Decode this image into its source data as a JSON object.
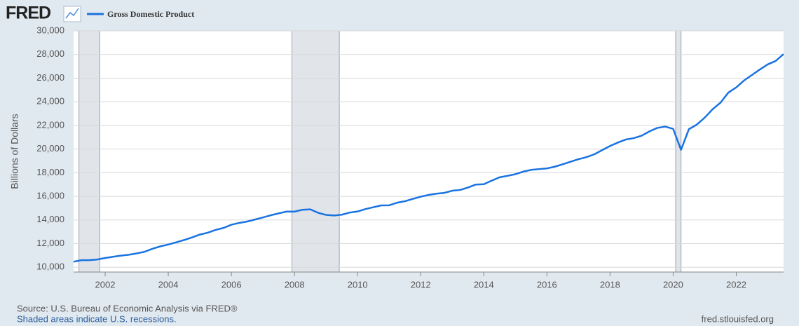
{
  "chart_data": {
    "type": "line",
    "logo": "FRED",
    "y_label": "Billions of Dollars",
    "source": "Source: U.S. Bureau of Economic Analysis via FRED®",
    "note": "Shaded areas indicate U.S. recessions.",
    "site": "fred.stlouisfed.org",
    "x": [
      2001,
      2001.25,
      2001.5,
      2001.75,
      2002,
      2002.25,
      2002.5,
      2002.75,
      2003,
      2003.25,
      2003.5,
      2003.75,
      2004,
      2004.25,
      2004.5,
      2004.75,
      2005,
      2005.25,
      2005.5,
      2005.75,
      2006,
      2006.25,
      2006.5,
      2006.75,
      2007,
      2007.25,
      2007.5,
      2007.75,
      2008,
      2008.25,
      2008.5,
      2008.75,
      2009,
      2009.25,
      2009.5,
      2009.75,
      2010,
      2010.25,
      2010.5,
      2010.75,
      2011,
      2011.25,
      2011.5,
      2011.75,
      2012,
      2012.25,
      2012.5,
      2012.75,
      2013,
      2013.25,
      2013.5,
      2013.75,
      2014,
      2014.25,
      2014.5,
      2014.75,
      2015,
      2015.25,
      2015.5,
      2015.75,
      2016,
      2016.25,
      2016.5,
      2016.75,
      2017,
      2017.25,
      2017.5,
      2017.75,
      2018,
      2018.25,
      2018.5,
      2018.75,
      2019,
      2019.25,
      2019.5,
      2019.75,
      2020,
      2020.25,
      2020.5,
      2020.75,
      2021,
      2021.25,
      2021.5,
      2021.75,
      2022,
      2022.25,
      2022.5,
      2022.75,
      2023,
      2023.25,
      2023.5
    ],
    "series": [
      {
        "name": "Gross Domestic Product",
        "color": "#1a73e0",
        "values": [
          10470,
          10599,
          10598,
          10660,
          10784,
          10887,
          10985,
          11062,
          11174,
          11312,
          11566,
          11772,
          11923,
          12112,
          12305,
          12527,
          12767,
          12923,
          13160,
          13328,
          13599,
          13753,
          13871,
          14039,
          14216,
          14402,
          14564,
          14716,
          14706,
          14865,
          14899,
          14609,
          14430,
          14382,
          14449,
          14629,
          14721,
          14926,
          15080,
          15232,
          15242,
          15462,
          15588,
          15786,
          15974,
          16121,
          16227,
          16297,
          16476,
          16542,
          16750,
          16999,
          17026,
          17329,
          17612,
          17735,
          17874,
          18094,
          18241,
          18306,
          18364,
          18510,
          18716,
          18931,
          19144,
          19314,
          19555,
          19910,
          20259,
          20553,
          20806,
          20922,
          21131,
          21496,
          21791,
          21902,
          21707,
          19935,
          21684,
          22069,
          22657,
          23368,
          23922,
          24777,
          25215,
          25805,
          26272,
          26735,
          27165,
          27454,
          28033
        ]
      }
    ],
    "recessions": [
      [
        2001.17,
        2001.83
      ],
      [
        2007.92,
        2009.42
      ],
      [
        2020.08,
        2020.25
      ]
    ],
    "xlim": [
      2001,
      2023.5
    ],
    "xticks": [
      2002,
      2004,
      2006,
      2008,
      2010,
      2012,
      2014,
      2016,
      2018,
      2020,
      2022
    ],
    "ylim": [
      9600,
      30000
    ],
    "yticks": [
      {
        "value": 10000,
        "label": "10,000"
      },
      {
        "value": 12000,
        "label": "12,000"
      },
      {
        "value": 14000,
        "label": "14,000"
      },
      {
        "value": 16000,
        "label": "16,000"
      },
      {
        "value": 18000,
        "label": "18,000"
      },
      {
        "value": 20000,
        "label": "20,000"
      },
      {
        "value": 22000,
        "label": "22,000"
      },
      {
        "value": 24000,
        "label": "24,000"
      },
      {
        "value": 26000,
        "label": "26,000"
      },
      {
        "value": 28000,
        "label": "28,000"
      },
      {
        "value": 30000,
        "label": "30,000"
      }
    ],
    "grid": true
  }
}
